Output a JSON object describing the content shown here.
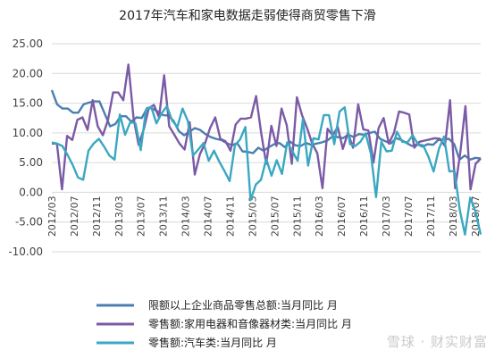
{
  "chart_data": {
    "type": "line",
    "title": "2017年汽车和家电数据走弱使得商贸零售下滑",
    "xlabel": "",
    "ylabel": "",
    "ylim": [
      -10,
      25
    ],
    "yticks": [
      "25.00",
      "20.00",
      "15.00",
      "10.00",
      "5.00",
      "0.00",
      "-5.00",
      "-10.00"
    ],
    "x_start": "2012/03",
    "x_end": "2018/08",
    "xticks": [
      "2012/03",
      "2012/07",
      "2012/11",
      "2013/03",
      "2013/07",
      "2013/11",
      "2014/03",
      "2014/07",
      "2014/11",
      "2015/03",
      "2015/07",
      "2015/11",
      "2016/03",
      "2016/07",
      "2016/11",
      "2017/03",
      "2017/07",
      "2017/11",
      "2018/03",
      "2018/07"
    ],
    "grid": true,
    "legend_position": "bottom-left",
    "series": [
      {
        "name": "限额以上企业商品零售总额:当月同比 月",
        "color": "#4a7fb0",
        "values": [
          17.2,
          14.8,
          14.1,
          14.1,
          13.4,
          13.4,
          14.8,
          15.1,
          15.3,
          15.3,
          13.2,
          11.1,
          11.5,
          12.8,
          12.8,
          11.9,
          12.6,
          12.5,
          14.2,
          14.1,
          13.6,
          13.0,
          12.9,
          12.0,
          10.3,
          9.6,
          10.2,
          10.8,
          10.5,
          9.8,
          9.3,
          9.0,
          8.8,
          8.3,
          7.9,
          8.3,
          6.9,
          6.8,
          6.6,
          7.5,
          7.0,
          7.6,
          8.1,
          8.3,
          7.6,
          8.5,
          7.9,
          7.8,
          8.3,
          8.0,
          8.2,
          8.4,
          8.7,
          9.4,
          9.3,
          9.1,
          9.7,
          9.3,
          9.8,
          9.7,
          10.0,
          10.2,
          9.0,
          8.6,
          8.2,
          9.1,
          8.8,
          8.3,
          7.8,
          8.1,
          7.7,
          8.1,
          8.0,
          8.8,
          8.9,
          9.0,
          8.1,
          5.5,
          6.2,
          5.5,
          5.8,
          5.7
        ]
      },
      {
        "name": "零售额:家用电器和音像器材类:当月同比 月",
        "color": "#7b5aa6",
        "values": [
          8.2,
          8.2,
          0.5,
          9.5,
          8.8,
          12.2,
          12.6,
          10.5,
          15.5,
          11.1,
          9.6,
          12.2,
          16.8,
          16.8,
          15.5,
          21.5,
          12.6,
          8.0,
          10.6,
          14.2,
          14.7,
          12.6,
          19.7,
          11.1,
          9.7,
          8.2,
          7.2,
          11.8,
          3.0,
          6.4,
          8.2,
          10.8,
          12.6,
          9.0,
          8.6,
          7.0,
          11.4,
          12.4,
          12.4,
          12.6,
          16.2,
          10.0,
          4.8,
          11.2,
          7.8,
          14.1,
          11.3,
          4.8,
          16.0,
          13.0,
          10.8,
          8.2,
          6.6,
          0.7,
          10.7,
          9.6,
          11.0,
          7.3,
          10.0,
          7.5,
          14.8,
          10.6,
          10.4,
          5.0,
          10.8,
          12.5,
          8.2,
          10.0,
          13.6,
          13.4,
          13.1,
          7.5,
          8.5,
          8.7,
          8.9,
          9.1,
          9.0,
          7.8,
          15.5,
          0.7,
          6.6,
          14.5,
          0.5,
          4.8,
          5.7
        ]
      },
      {
        "name": "零售额:汽车类:当月同比 月",
        "color": "#39a8c0",
        "values": [
          8.4,
          8.2,
          7.8,
          6.3,
          4.6,
          2.5,
          2.1,
          7.0,
          8.2,
          9.0,
          7.7,
          6.2,
          5.5,
          13.1,
          9.7,
          11.8,
          11.6,
          7.1,
          13.9,
          14.4,
          11.6,
          13.3,
          14.5,
          12.1,
          11.0,
          14.1,
          12.0,
          6.2,
          7.2,
          8.3,
          5.3,
          7.0,
          5.2,
          3.6,
          1.9,
          7.9,
          8.9,
          11.0,
          -1.3,
          1.3,
          2.1,
          5.6,
          2.8,
          5.4,
          3.1,
          8.4,
          6.9,
          5.3,
          12.3,
          4.5,
          9.1,
          8.9,
          13.0,
          13.0,
          8.1,
          13.6,
          14.3,
          8.1,
          7.8,
          8.5,
          9.9,
          6.5,
          -0.8,
          8.5,
          6.9,
          7.0,
          10.2,
          8.5,
          8.4,
          9.6,
          8.1,
          7.9,
          6.0,
          3.5,
          7.3,
          9.4,
          3.5,
          3.6,
          -3.0,
          -7.1,
          -0.9,
          -3.2,
          -7.1
        ]
      }
    ]
  },
  "watermark": "雪球 · 财实财富"
}
